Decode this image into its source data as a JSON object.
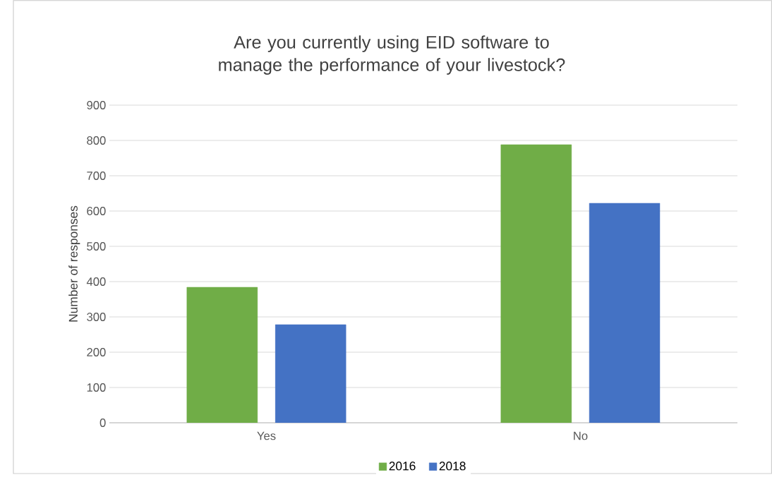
{
  "chart_data": {
    "type": "bar",
    "title": "Are you currently using EID software to manage the performance of your livestock?",
    "ylabel": "Number of responses",
    "categories": [
      "Yes",
      "No"
    ],
    "series": [
      {
        "name": "2016",
        "color": "#70ad47",
        "values": [
          384,
          788
        ]
      },
      {
        "name": "2018",
        "color": "#4472c4",
        "values": [
          278,
          622
        ]
      }
    ],
    "ylim": [
      0,
      900
    ],
    "yticks": [
      0,
      100,
      200,
      300,
      400,
      500,
      600,
      700,
      800,
      900
    ],
    "grid": "y",
    "legend": "bottom"
  }
}
